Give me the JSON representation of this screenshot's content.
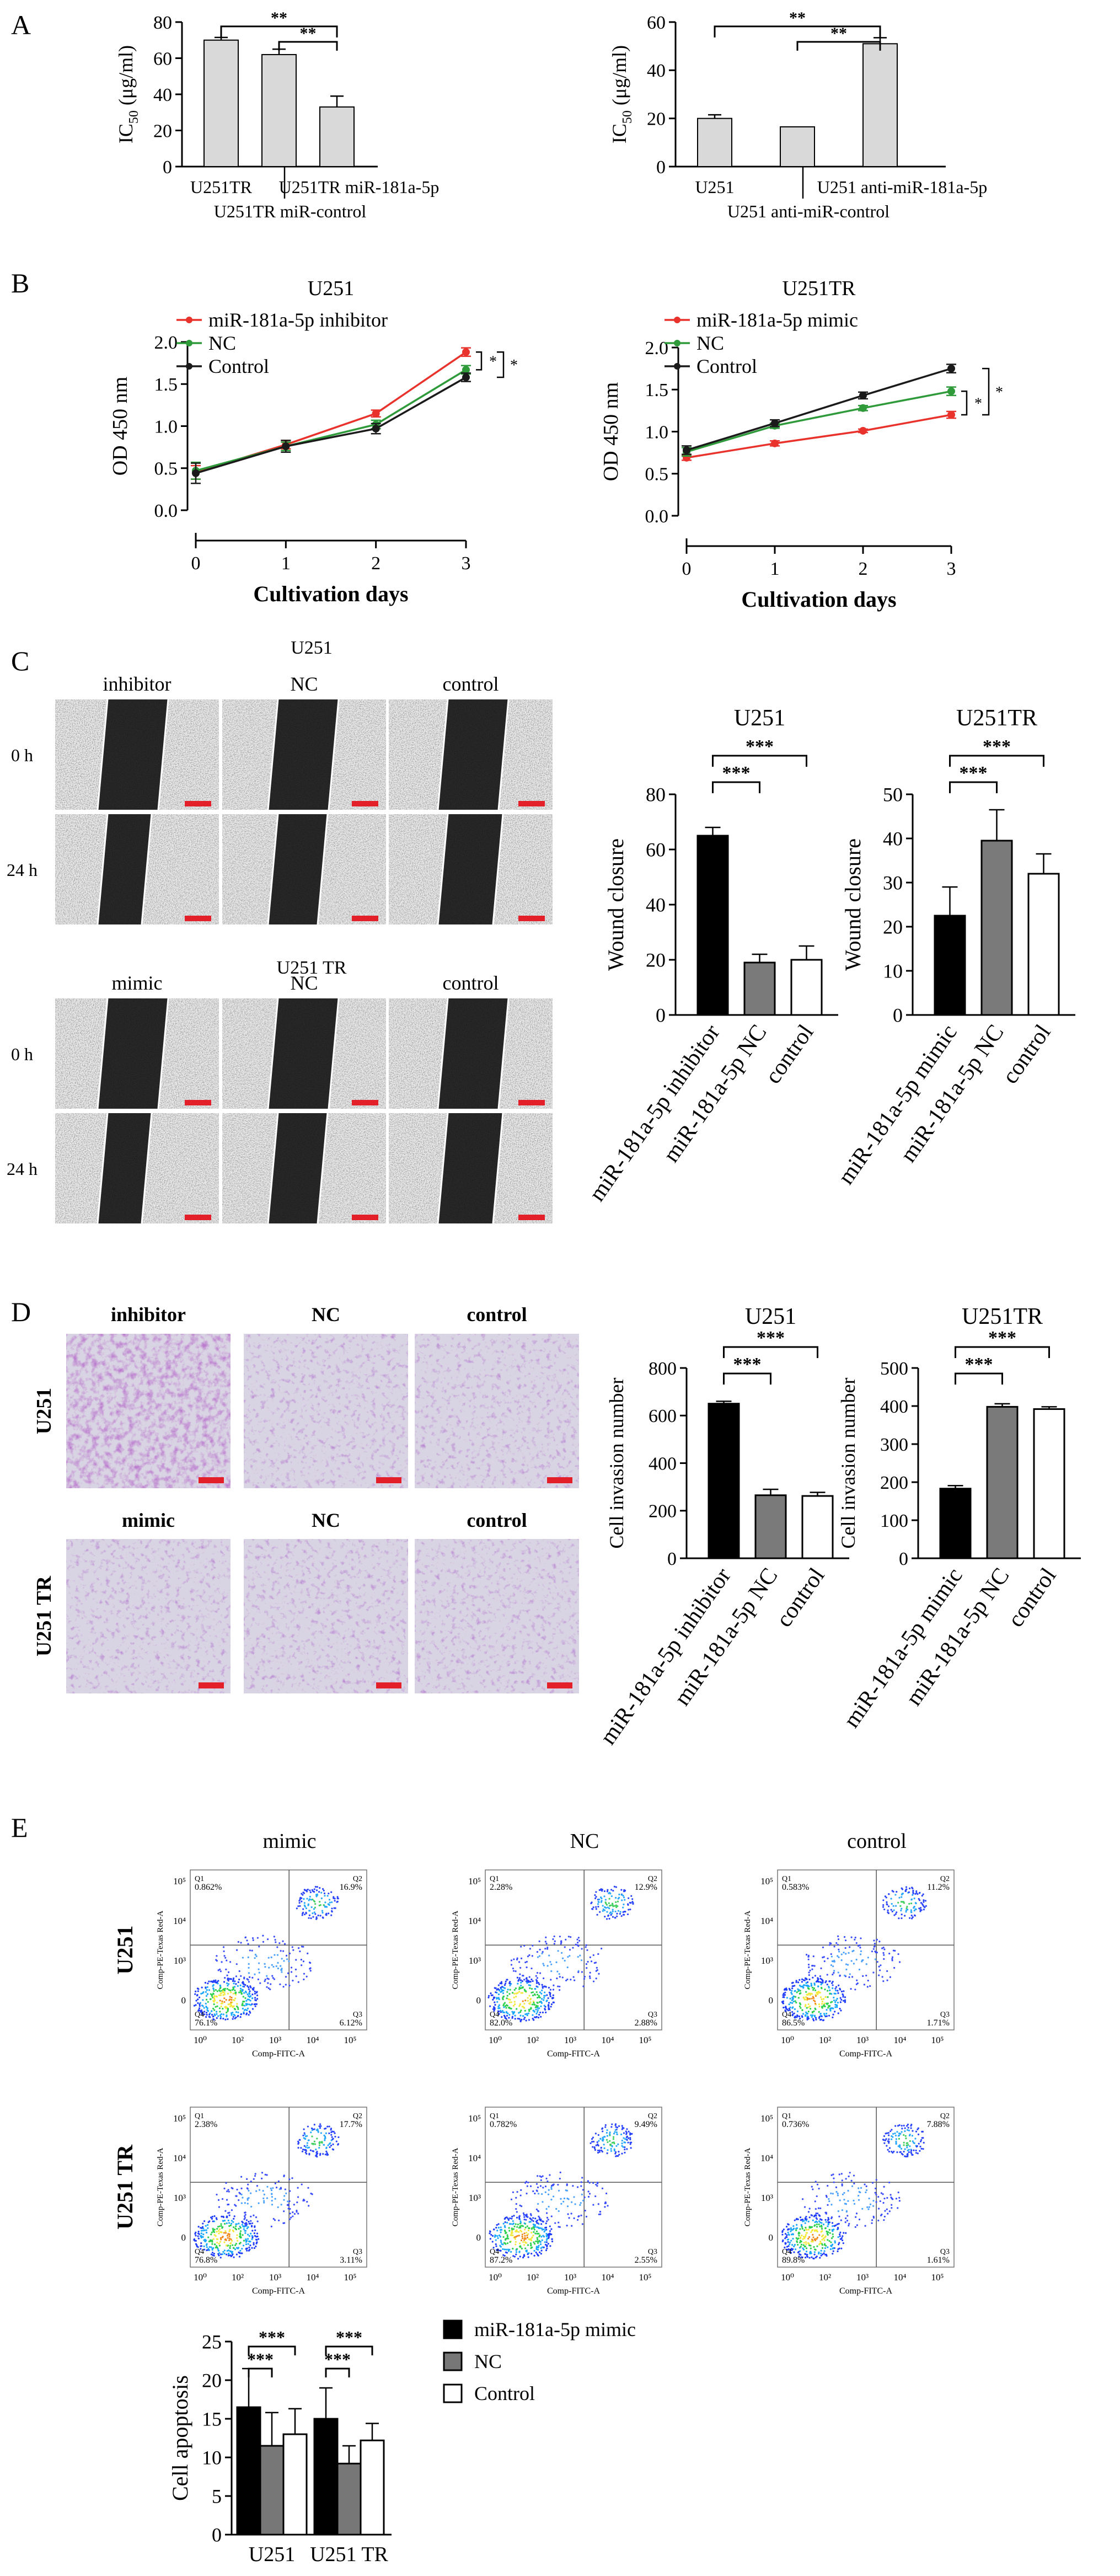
{
  "panels": {
    "A": {
      "letter": "A",
      "left": {
        "ylabel_main": "IC",
        "ylabel_sub": "50",
        "ylabel_unit": " (μg/ml)",
        "ylim": [
          0,
          80
        ],
        "ticks": [
          0,
          20,
          40,
          60,
          80
        ],
        "values": [
          70,
          62,
          33
        ],
        "errors": [
          1.5,
          3,
          6
        ],
        "xlabels": [
          "U251TR",
          "U251TR miR-181a-5p",
          "U251TR miR-control"
        ],
        "sig": [
          "**",
          "**"
        ]
      },
      "right": {
        "ylabel_main": "IC",
        "ylabel_sub": "50",
        "ylabel_unit": " (μg/ml)",
        "ylim": [
          0,
          60
        ],
        "ticks": [
          0,
          20,
          40,
          60
        ],
        "values": [
          20,
          16.5,
          51
        ],
        "errors": [
          1.5,
          0,
          2.5
        ],
        "xlabels": [
          "U251",
          "U251 anti-miR-181a-5p",
          "U251 anti-miR-control"
        ],
        "sig": [
          "**",
          "**"
        ]
      }
    },
    "B": {
      "letter": "B",
      "left": {
        "title": "U251",
        "ylabel": "OD 450 nm",
        "xlabel": "Cultivation days",
        "ylim": [
          0,
          2.0
        ],
        "yticks": [
          "0.0",
          "0.5",
          "1.0",
          "1.5",
          "2.0"
        ],
        "x": [
          0,
          1,
          2,
          3
        ],
        "xticks": [
          "0",
          "1",
          "2",
          "3"
        ],
        "series": [
          {
            "name": "miR-181a-5p inhibitor",
            "color": "#e8322b",
            "values": [
              0.45,
              0.78,
              1.15,
              1.88
            ],
            "err": [
              0.08,
              0.05,
              0.04,
              0.05
            ]
          },
          {
            "name": "NC",
            "color": "#2e9a3a",
            "values": [
              0.47,
              0.76,
              1.02,
              1.67
            ],
            "err": [
              0.1,
              0.05,
              0.05,
              0.05
            ]
          },
          {
            "name": "Control",
            "color": "#1a1a1a",
            "values": [
              0.44,
              0.76,
              0.97,
              1.58
            ],
            "err": [
              0.12,
              0.07,
              0.06,
              0.05
            ]
          }
        ],
        "sig": [
          "*",
          "*"
        ]
      },
      "right": {
        "title": "U251TR",
        "ylabel": "OD 450 nm",
        "xlabel": "Cultivation days",
        "ylim": [
          0,
          2.0
        ],
        "yticks": [
          "0.0",
          "0.5",
          "1.0",
          "1.5",
          "2.0"
        ],
        "x": [
          0,
          1,
          2,
          3
        ],
        "xticks": [
          "0",
          "1",
          "2",
          "3"
        ],
        "series": [
          {
            "name": "miR-181a-5p mimic",
            "color": "#e8322b",
            "values": [
              0.69,
              0.86,
              1.01,
              1.2
            ],
            "err": [
              0.03,
              0.03,
              0.02,
              0.04
            ]
          },
          {
            "name": "NC",
            "color": "#2e9a3a",
            "values": [
              0.76,
              1.07,
              1.28,
              1.48
            ],
            "err": [
              0.05,
              0.03,
              0.03,
              0.05
            ]
          },
          {
            "name": "Control",
            "color": "#1a1a1a",
            "values": [
              0.78,
              1.1,
              1.43,
              1.75
            ],
            "err": [
              0.05,
              0.04,
              0.04,
              0.05
            ]
          }
        ],
        "sig": [
          "*",
          "*"
        ]
      }
    },
    "C": {
      "letter": "C",
      "group1": "U251",
      "group2": "U251 TR",
      "cols1": [
        "inhibitor",
        "NC",
        "control"
      ],
      "cols2": [
        "mimic",
        "NC",
        "control"
      ],
      "rows": [
        "0 h",
        "24 h"
      ],
      "left": {
        "title": "U251",
        "ylabel": "Wound closure",
        "ylim": [
          0,
          80
        ],
        "ticks": [
          0,
          20,
          40,
          60,
          80
        ],
        "categories": [
          "miR-181a-5p inhibitor",
          "miR-181a-5p NC",
          "control"
        ],
        "values": [
          65,
          19,
          20
        ],
        "errors": [
          3,
          3,
          5
        ],
        "sig": [
          "***",
          "***"
        ]
      },
      "right": {
        "title": "U251TR",
        "ylabel": "Wound closure",
        "ylim": [
          0,
          50
        ],
        "ticks": [
          0,
          10,
          20,
          30,
          40,
          50
        ],
        "categories": [
          "miR-181a-5p mimic",
          "miR-181a-5p NC",
          "control"
        ],
        "values": [
          22.5,
          39.5,
          32
        ],
        "errors": [
          6.5,
          7,
          4.5
        ],
        "sig": [
          "***",
          "***"
        ]
      }
    },
    "D": {
      "letter": "D",
      "cols1": [
        "inhibitor",
        "NC",
        "control"
      ],
      "cols2": [
        "mimic",
        "NC",
        "control"
      ],
      "rows": [
        "U251",
        "U251 TR"
      ],
      "left": {
        "title": "U251",
        "ylabel": "Cell invasion number",
        "ylim": [
          0,
          800
        ],
        "ticks": [
          0,
          200,
          400,
          600,
          800
        ],
        "categories": [
          "miR-181a-5p inhibitor",
          "miR-181a-5p NC",
          "control"
        ],
        "values": [
          650,
          265,
          262
        ],
        "errors": [
          10,
          25,
          15
        ],
        "sig": [
          "***",
          "***"
        ]
      },
      "right": {
        "title": "U251TR",
        "ylabel": "Cell invasion number",
        "ylim": [
          0,
          500
        ],
        "ticks": [
          0,
          100,
          200,
          300,
          400,
          500
        ],
        "categories": [
          "miR-181a-5p mimic",
          "miR-181a-5p NC",
          "control"
        ],
        "values": [
          183,
          398,
          392
        ],
        "errors": [
          8,
          8,
          6
        ],
        "sig": [
          "***",
          "***"
        ]
      }
    },
    "E": {
      "letter": "E",
      "cols": [
        "mimic",
        "NC",
        "control"
      ],
      "rows": [
        "U251",
        "U251 TR"
      ],
      "axis_y": "Comp-PE-Texas Red-A",
      "axis_x": "Comp-FITC-A",
      "quads": [
        [
          {
            "q1": "0.862%",
            "q2": "16.9%",
            "q3": "6.12%",
            "q4": "76.1%"
          },
          {
            "q1": "2.28%",
            "q2": "12.9%",
            "q3": "2.88%",
            "q4": "82.0%"
          },
          {
            "q1": "0.583%",
            "q2": "11.2%",
            "q3": "1.71%",
            "q4": "86.5%"
          }
        ],
        [
          {
            "q1": "2.38%",
            "q2": "17.7%",
            "q3": "3.11%",
            "q4": "76.8%"
          },
          {
            "q1": "0.782%",
            "q2": "9.49%",
            "q3": "2.55%",
            "q4": "87.2%"
          },
          {
            "q1": "0.736%",
            "q2": "7.88%",
            "q3": "1.61%",
            "q4": "89.8%"
          }
        ]
      ],
      "bar": {
        "ylabel": "Cell apoptosis",
        "ylim": [
          0,
          25
        ],
        "ticks": [
          0,
          5,
          10,
          15,
          20,
          25
        ],
        "groups": [
          "U251",
          "U251 TR"
        ],
        "series": [
          {
            "name": "miR-181a-5p mimic",
            "fill": "#000000",
            "values": [
              16.5,
              15
            ],
            "errors": [
              5,
              4
            ]
          },
          {
            "name": "NC",
            "fill": "#777777",
            "values": [
              11.5,
              9.2
            ],
            "errors": [
              4.3,
              2.3
            ]
          },
          {
            "name": "Control",
            "fill": "#ffffff",
            "values": [
              13,
              12.2
            ],
            "errors": [
              3.3,
              2.2
            ]
          }
        ],
        "sig": [
          "***",
          "***",
          "***",
          "***"
        ]
      }
    }
  }
}
